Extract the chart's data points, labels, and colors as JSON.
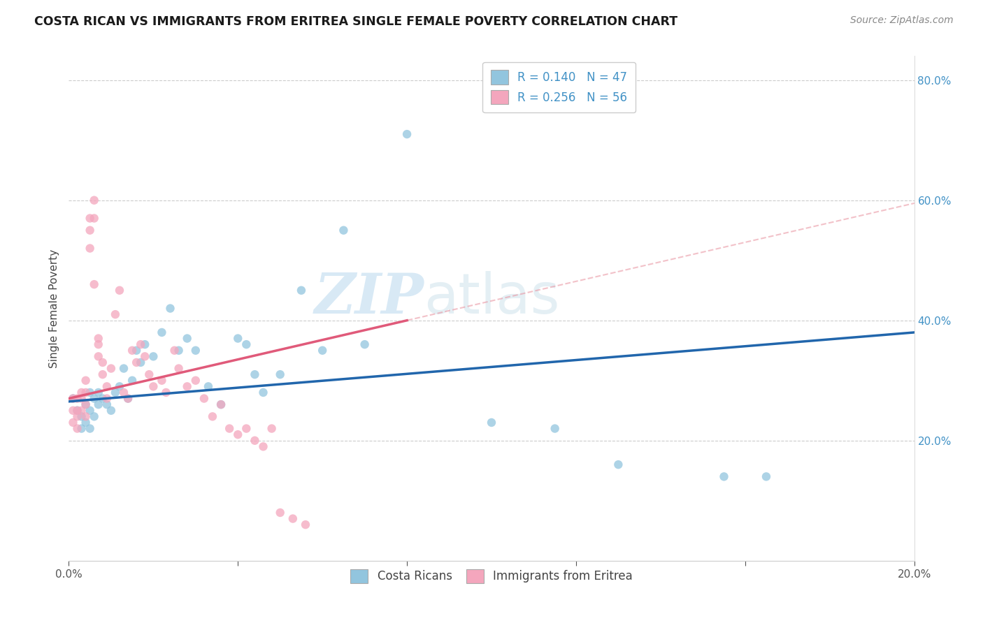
{
  "title": "COSTA RICAN VS IMMIGRANTS FROM ERITREA SINGLE FEMALE POVERTY CORRELATION CHART",
  "source": "Source: ZipAtlas.com",
  "ylabel": "Single Female Poverty",
  "watermark_zip": "ZIP",
  "watermark_atlas": "atlas",
  "xlim": [
    0.0,
    0.2
  ],
  "ylim": [
    0.0,
    0.84
  ],
  "xticks": [
    0.0,
    0.04,
    0.08,
    0.12,
    0.16,
    0.2
  ],
  "xtick_labels": [
    "0.0%",
    "",
    "",
    "",
    "",
    "20.0%"
  ],
  "ytick_labels_right": [
    "20.0%",
    "40.0%",
    "60.0%",
    "80.0%"
  ],
  "ytick_positions_right": [
    0.2,
    0.4,
    0.6,
    0.8
  ],
  "legend_bottom1": "Costa Ricans",
  "legend_bottom2": "Immigrants from Eritrea",
  "color_blue": "#92c5de",
  "color_pink": "#f4a6bd",
  "color_blue_line": "#2166ac",
  "color_pink_solid": "#e05a7a",
  "color_pink_dashed": "#e8909d",
  "blue_x": [
    0.001,
    0.002,
    0.003,
    0.003,
    0.004,
    0.004,
    0.005,
    0.005,
    0.005,
    0.006,
    0.006,
    0.007,
    0.007,
    0.008,
    0.009,
    0.01,
    0.011,
    0.012,
    0.013,
    0.014,
    0.015,
    0.016,
    0.017,
    0.018,
    0.02,
    0.022,
    0.024,
    0.026,
    0.028,
    0.03,
    0.033,
    0.036,
    0.04,
    0.042,
    0.044,
    0.046,
    0.05,
    0.055,
    0.06,
    0.065,
    0.07,
    0.08,
    0.1,
    0.115,
    0.13,
    0.155,
    0.165
  ],
  "blue_y": [
    0.27,
    0.25,
    0.22,
    0.24,
    0.23,
    0.26,
    0.22,
    0.25,
    0.28,
    0.24,
    0.27,
    0.26,
    0.28,
    0.27,
    0.26,
    0.25,
    0.28,
    0.29,
    0.32,
    0.27,
    0.3,
    0.35,
    0.33,
    0.36,
    0.34,
    0.38,
    0.42,
    0.35,
    0.37,
    0.35,
    0.29,
    0.26,
    0.37,
    0.36,
    0.31,
    0.28,
    0.31,
    0.45,
    0.35,
    0.55,
    0.36,
    0.71,
    0.23,
    0.22,
    0.16,
    0.14,
    0.14
  ],
  "pink_x": [
    0.001,
    0.001,
    0.001,
    0.002,
    0.002,
    0.002,
    0.002,
    0.003,
    0.003,
    0.003,
    0.004,
    0.004,
    0.004,
    0.004,
    0.005,
    0.005,
    0.005,
    0.006,
    0.006,
    0.006,
    0.007,
    0.007,
    0.007,
    0.008,
    0.008,
    0.009,
    0.009,
    0.01,
    0.011,
    0.012,
    0.013,
    0.014,
    0.015,
    0.016,
    0.017,
    0.018,
    0.019,
    0.02,
    0.022,
    0.023,
    0.025,
    0.026,
    0.028,
    0.03,
    0.032,
    0.034,
    0.036,
    0.038,
    0.04,
    0.042,
    0.044,
    0.046,
    0.048,
    0.05,
    0.053,
    0.056
  ],
  "pink_y": [
    0.27,
    0.25,
    0.23,
    0.27,
    0.25,
    0.24,
    0.22,
    0.28,
    0.27,
    0.25,
    0.3,
    0.28,
    0.26,
    0.24,
    0.57,
    0.55,
    0.52,
    0.6,
    0.57,
    0.46,
    0.37,
    0.36,
    0.34,
    0.33,
    0.31,
    0.29,
    0.27,
    0.32,
    0.41,
    0.45,
    0.28,
    0.27,
    0.35,
    0.33,
    0.36,
    0.34,
    0.31,
    0.29,
    0.3,
    0.28,
    0.35,
    0.32,
    0.29,
    0.3,
    0.27,
    0.24,
    0.26,
    0.22,
    0.21,
    0.22,
    0.2,
    0.19,
    0.22,
    0.08,
    0.07,
    0.06
  ]
}
